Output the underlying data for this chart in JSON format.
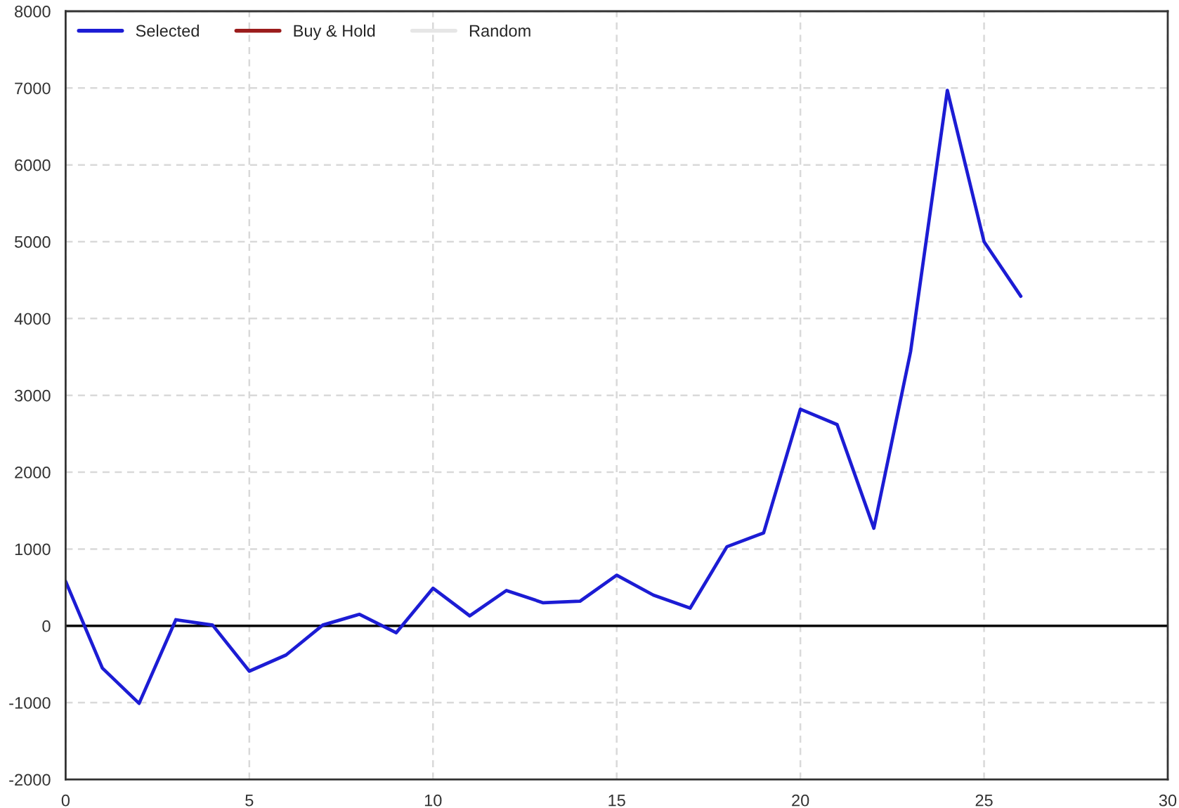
{
  "chart_data": {
    "type": "line",
    "x": [
      0,
      1,
      2,
      3,
      4,
      5,
      6,
      7,
      8,
      9,
      10,
      11,
      12,
      13,
      14,
      15,
      16,
      17,
      18,
      19,
      20,
      21,
      22,
      23,
      24,
      25,
      26
    ],
    "series": [
      {
        "name": "Selected",
        "color": "#1c1cd4",
        "values": [
          580,
          -550,
          -1010,
          80,
          10,
          -590,
          -380,
          10,
          150,
          -90,
          490,
          130,
          460,
          300,
          320,
          660,
          400,
          230,
          1030,
          1210,
          2820,
          2620,
          1270,
          3570,
          6970,
          5000,
          4290
        ]
      },
      {
        "name": "Buy & Hold",
        "color": "#9b1c1c",
        "values": [
          null,
          null,
          null,
          null,
          null,
          null,
          null,
          null,
          null,
          null,
          null,
          null,
          null,
          null,
          null,
          null,
          null,
          null,
          null,
          null,
          null,
          null,
          null,
          null,
          null,
          null,
          null
        ]
      },
      {
        "name": "Random",
        "color": "#e6e6e6",
        "values": [
          null,
          null,
          null,
          null,
          null,
          null,
          null,
          null,
          null,
          null,
          null,
          null,
          null,
          null,
          null,
          null,
          null,
          null,
          null,
          null,
          null,
          null,
          null,
          null,
          null,
          null,
          null
        ]
      }
    ],
    "xlim": [
      0,
      30
    ],
    "xticks": [
      0,
      5,
      10,
      15,
      20,
      25,
      30
    ],
    "ylim": [
      -2000,
      8000
    ],
    "yticks": [
      -2000,
      -1000,
      0,
      1000,
      2000,
      3000,
      4000,
      5000,
      6000,
      7000,
      8000
    ],
    "ref_lines": [
      {
        "axis": "y",
        "value": 0,
        "color": "#000000"
      }
    ],
    "grid": true,
    "legend": "top left",
    "line_style": "solid"
  }
}
